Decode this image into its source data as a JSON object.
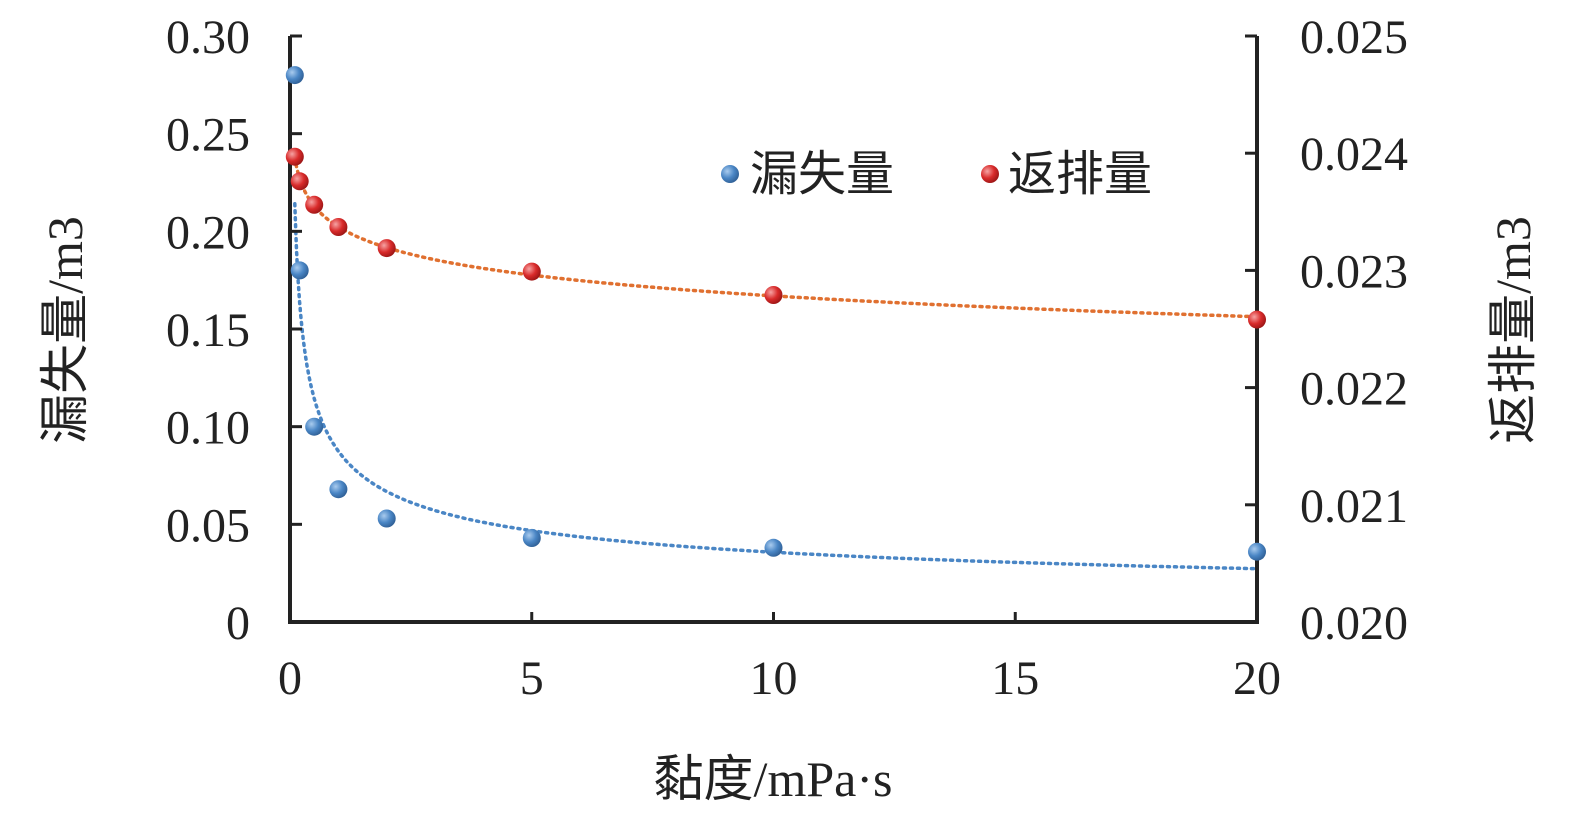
{
  "chart_data": {
    "type": "scatter",
    "xlabel": "黏度/mPa·s",
    "ylabel_left": "漏失量/m3",
    "ylabel_right": "返排量/m3",
    "xlim": [
      0,
      20
    ],
    "ylim_left": [
      0,
      0.3
    ],
    "ylim_right": [
      0.02,
      0.025
    ],
    "x_ticks": [
      0,
      5,
      10,
      15,
      20
    ],
    "x_tick_labels": [
      "0",
      "5",
      "10",
      "15",
      "20"
    ],
    "y_left_ticks": [
      0,
      0.05,
      0.1,
      0.15,
      0.2,
      0.25,
      0.3
    ],
    "y_left_tick_labels": [
      "0",
      "0.05",
      "0.10",
      "0.15",
      "0.20",
      "0.25",
      "0.30"
    ],
    "y_right_ticks": [
      0.02,
      0.021,
      0.022,
      0.023,
      0.024,
      0.025
    ],
    "y_right_tick_labels": [
      "0.020",
      "0.021",
      "0.022",
      "0.023",
      "0.024",
      "0.025"
    ],
    "grid": false,
    "legend_position": "top-right",
    "series": [
      {
        "name": "漏失量",
        "axis": "left",
        "color": "#4a86c5",
        "x": [
          0.1,
          0.2,
          0.5,
          1,
          2,
          5,
          10,
          20
        ],
        "values": [
          0.28,
          0.18,
          0.1,
          0.068,
          0.053,
          0.043,
          0.038,
          0.036
        ],
        "trendline": "power",
        "trend_color": "#4a86c5"
      },
      {
        "name": "返排量",
        "axis": "right",
        "color": "#d92b2b",
        "x": [
          0.1,
          0.2,
          0.5,
          1,
          2,
          5,
          10,
          20
        ],
        "values": [
          0.02397,
          0.02376,
          0.02356,
          0.02337,
          0.02319,
          0.02299,
          0.02279,
          0.02258
        ],
        "trendline": "log",
        "trend_color": "#e07030"
      }
    ]
  }
}
